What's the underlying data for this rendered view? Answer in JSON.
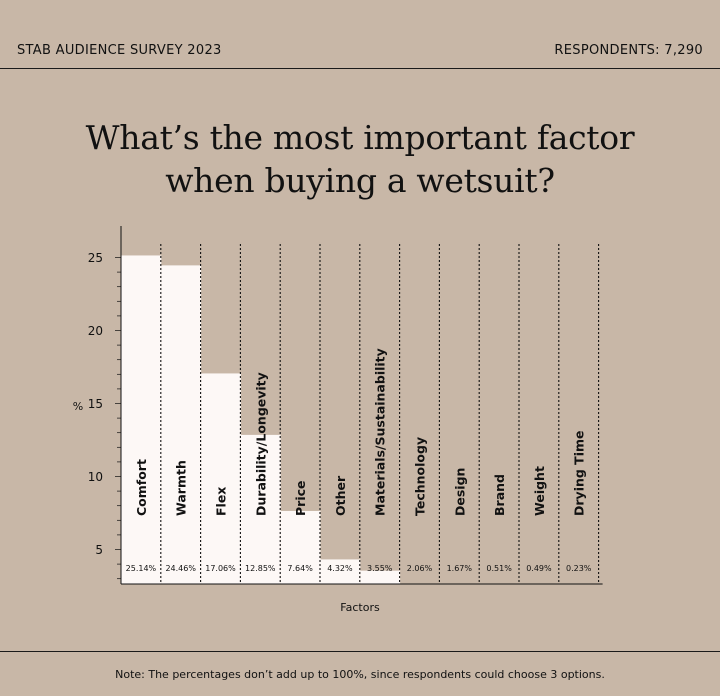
{
  "header": {
    "survey": "STAB AUDIENCE SURVEY 2023",
    "respondents": "RESPONDENTS: 7,290"
  },
  "title": {
    "line1": "What’s the most important factor",
    "line2": "when buying a wetsuit?"
  },
  "footer": {
    "note": "Note: The percentages don’t add up to 100%, since respondents could choose 3 options."
  },
  "colors": {
    "background": "#c8b7a7",
    "bar": "#fdf8f6",
    "ink": "#111111"
  },
  "chart_data": {
    "type": "bar",
    "categories": [
      "Comfort",
      "Warmth",
      "Flex",
      "Durability/Longevity",
      "Price",
      "Other",
      "Materials/Sustainability",
      "Technology",
      "Design",
      "Brand",
      "Weight",
      "Drying Time"
    ],
    "values": [
      25.14,
      24.46,
      17.06,
      12.85,
      7.64,
      4.32,
      3.55,
      2.06,
      1.67,
      0.51,
      0.49,
      0.23
    ],
    "value_labels": [
      "25.14%",
      "24.46%",
      "17.06%",
      "12.85%",
      "7.64%",
      "4.32%",
      "3.55%",
      "2.06%",
      "1.67%",
      "0.51%",
      "0.49%",
      "0.23%"
    ],
    "xlabel": "Factors",
    "ylabel": "%",
    "yticks": [
      5,
      10,
      15,
      20,
      25
    ],
    "ylim": [
      0,
      25
    ],
    "grid": "dotted vertical separators"
  }
}
